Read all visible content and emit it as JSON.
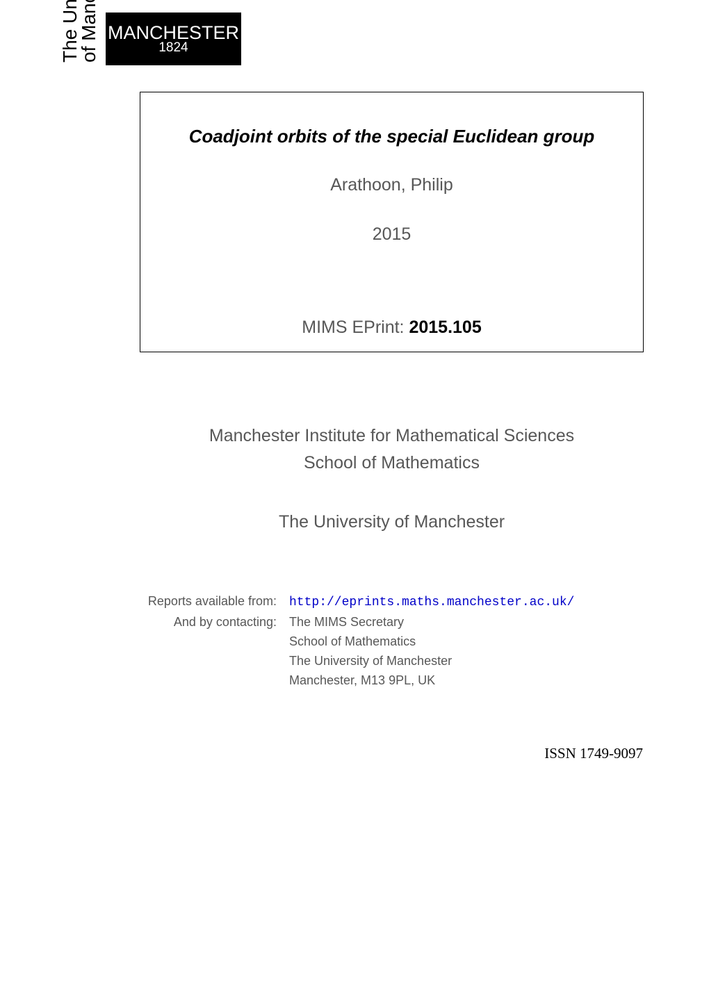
{
  "logo": {
    "main": "MANCHESTER",
    "year": "1824"
  },
  "vertical": {
    "line1": "The University",
    "line2": "of Manchester"
  },
  "titlebox": {
    "title": "Coadjoint orbits of the special Euclidean group",
    "author": "Arathoon, Philip",
    "year": "2015",
    "eprint_label": "MIMS EPrint:",
    "eprint_number": "2015.105"
  },
  "institute": {
    "line1": "Manchester Institute for Mathematical Sciences",
    "line2": "School of Mathematics"
  },
  "university": "The University of Manchester",
  "contact": {
    "reports_label": "Reports available from:",
    "reports_url": "http://eprints.maths.manchester.ac.uk/",
    "contacting_label": "And by contacting:",
    "line1": "The MIMS Secretary",
    "line2": "School of Mathematics",
    "line3": "The University of Manchester",
    "line4": "Manchester, M13 9PL, UK"
  },
  "issn": "ISSN 1749-9097",
  "colors": {
    "background": "#ffffff",
    "text_black": "#000000",
    "text_gray": "#575757",
    "link_blue": "#0000c8",
    "logo_bg": "#000000",
    "logo_fg": "#ffffff",
    "box_border": "#000000"
  },
  "typography": {
    "title_fontsize": 26,
    "body_fontsize": 25,
    "contact_fontsize": 18,
    "issn_fontsize": 21,
    "logo_fontsize": 27
  }
}
